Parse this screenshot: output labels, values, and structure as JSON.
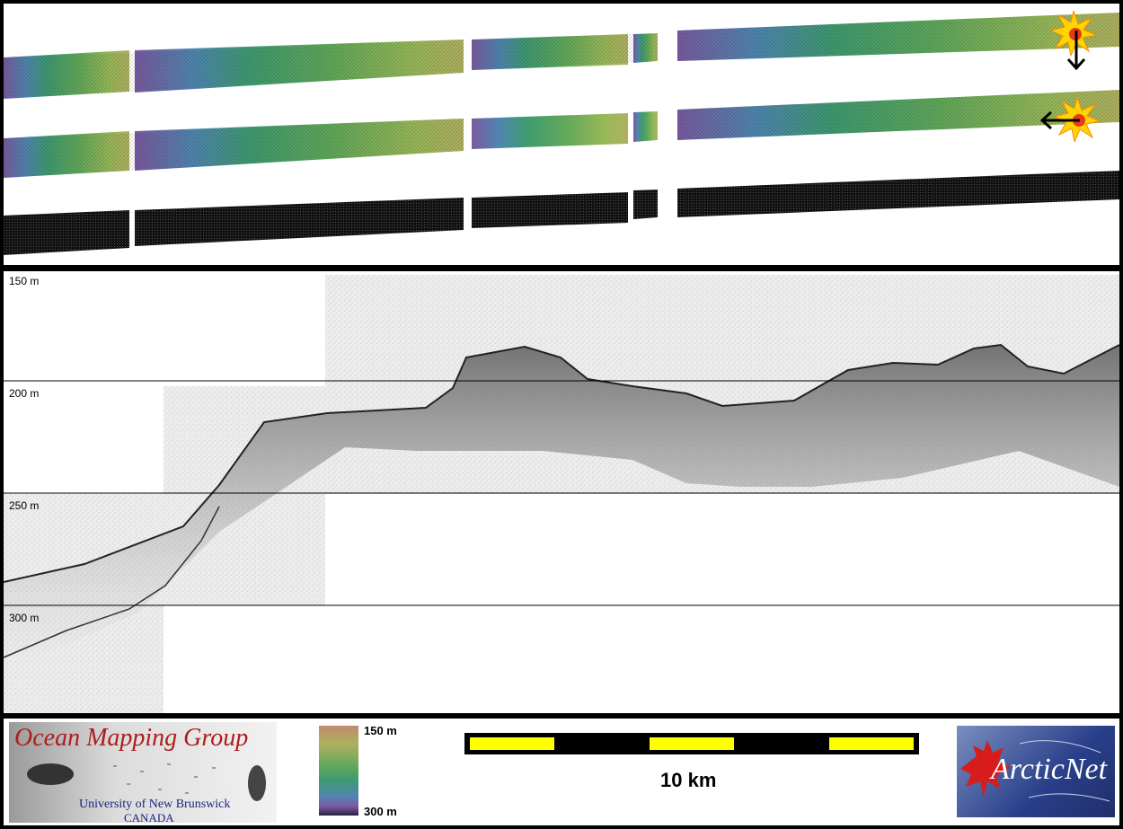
{
  "profile": {
    "depth_labels": [
      "150 m",
      "200 m",
      "250 m",
      "300 m"
    ]
  },
  "legend": {
    "logo_title": "Ocean Mapping Group",
    "logo_subtitle_1": "University of New Brunswick",
    "logo_subtitle_2": "CANADA",
    "colorbar_top": "150 m",
    "colorbar_bottom": "300 m",
    "scale_label": "10 km",
    "arcticnet_logo": "ArcticNet"
  },
  "icons": {
    "sun_illumination": "sun-burst-icon",
    "arrow_down": "arrow-down-icon",
    "arrow_left": "arrow-left-icon"
  },
  "colors": {
    "scale_yellow": "#ffff00",
    "logo_red": "#b01c1c",
    "arcticnet_blue": "#2a3f8a",
    "colorbar": [
      "#7b5aa0",
      "#4a86b0",
      "#3fa070",
      "#9abf50",
      "#d0b060"
    ]
  }
}
